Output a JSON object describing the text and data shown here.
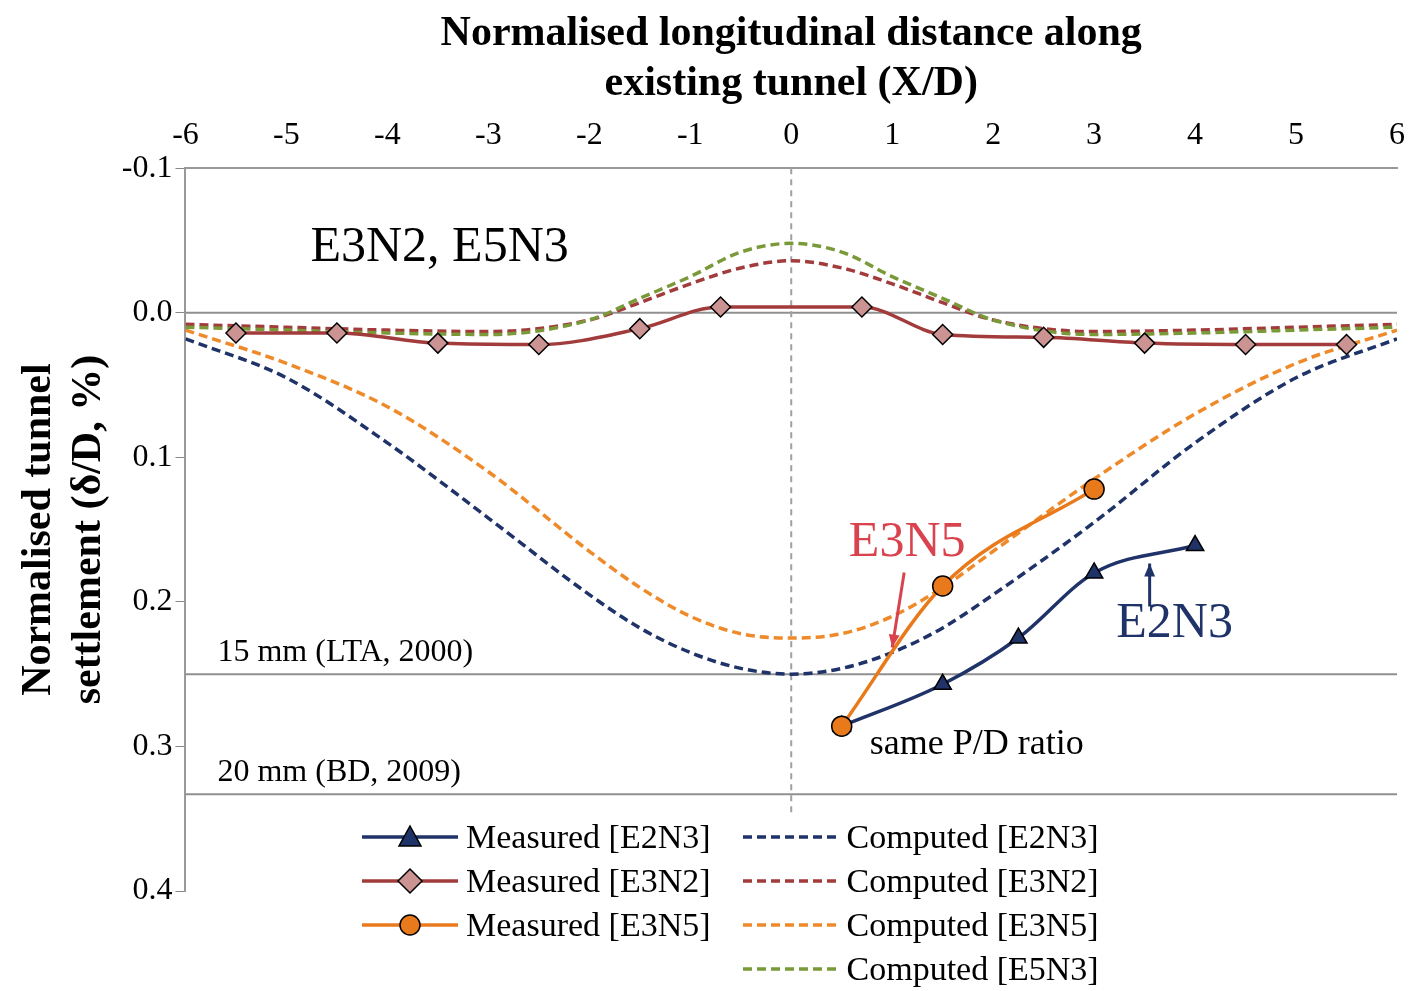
{
  "chart_data": {
    "type": "line",
    "xlabel": "Normalised longitudinal distance along existing tunnel (X/D)",
    "ylabel": "Normalised tunnel settlement (δ/D, %)",
    "xlim": [
      -6,
      6
    ],
    "xticks": [
      -6,
      -5,
      -4,
      -3,
      -2,
      -1,
      0,
      1,
      2,
      3,
      4,
      5,
      6
    ],
    "ylim": [
      0.4,
      -0.1
    ],
    "yticks": [
      -0.1,
      {
        "value": 0,
        "label": "0.0"
      },
      0.1,
      0.2,
      0.3,
      0.4
    ],
    "grid": false,
    "legend": "bottom",
    "series": [
      {
        "name": "Measured [E2N3]",
        "color": "#1f3368",
        "marker": "triangle",
        "line_style": "solid",
        "x": [
          0.5,
          1.5,
          2.25,
          3,
          4
        ],
        "values": [
          0.286,
          0.257,
          0.225,
          0.18,
          0.161
        ]
      },
      {
        "name": "Measured [E3N2]",
        "color": "#a23b3b",
        "marker": "diamond",
        "line_style": "solid",
        "x": [
          -5.5,
          -4.5,
          -3.5,
          -2.5,
          -1.5,
          -0.7,
          0.7,
          1.5,
          2.5,
          3.5,
          4.5,
          5.5
        ],
        "values": [
          0.014,
          0.014,
          0.021,
          0.022,
          0.011,
          -0.004,
          -0.004,
          0.015,
          0.017,
          0.021,
          0.022,
          0.022
        ]
      },
      {
        "name": "Measured [E3N5]",
        "color": "#e97a1c",
        "marker": "circle",
        "line_style": "solid",
        "x": [
          0.5,
          1.5,
          3
        ],
        "values": [
          0.286,
          0.189,
          0.122
        ]
      },
      {
        "name": "Computed [E2N3]",
        "color": "#1f3368",
        "marker": "none",
        "line_style": "dashed",
        "x": [
          -6,
          -5,
          -4,
          -3,
          -2,
          -1.5,
          -1,
          -0.5,
          0,
          0.5,
          1,
          1.5,
          2,
          3,
          4,
          5,
          6
        ],
        "values": [
          0.018,
          0.045,
          0.09,
          0.142,
          0.195,
          0.218,
          0.235,
          0.246,
          0.25,
          0.246,
          0.235,
          0.218,
          0.195,
          0.145,
          0.09,
          0.045,
          0.018
        ]
      },
      {
        "name": "Computed [E3N2]",
        "color": "#a23b3b",
        "marker": "none",
        "line_style": "dashed",
        "x": [
          -6,
          -5,
          -4,
          -3,
          -2,
          -1.5,
          -1,
          -0.5,
          0,
          0.5,
          1,
          1.5,
          2,
          3,
          4,
          5,
          6
        ],
        "values": [
          0.008,
          0.01,
          0.012,
          0.013,
          0.005,
          -0.007,
          -0.02,
          -0.031,
          -0.036,
          -0.031,
          -0.02,
          -0.007,
          0.005,
          0.013,
          0.012,
          0.01,
          0.008
        ]
      },
      {
        "name": "Computed [E3N5]",
        "color": "#ef8a2a",
        "marker": "none",
        "line_style": "dashed",
        "x": [
          -6,
          -5,
          -4,
          -3,
          -2,
          -1.5,
          -1,
          -0.5,
          0,
          0.5,
          1,
          1.5,
          2,
          3,
          4,
          5,
          6
        ],
        "values": [
          0.012,
          0.035,
          0.065,
          0.11,
          0.165,
          0.19,
          0.21,
          0.222,
          0.225,
          0.222,
          0.21,
          0.19,
          0.165,
          0.115,
          0.07,
          0.035,
          0.012
        ]
      },
      {
        "name": "Computed [E5N3]",
        "color": "#7a9a3a",
        "marker": "none",
        "line_style": "dashed",
        "x": [
          -6,
          -5,
          -4,
          -3,
          -2,
          -1.5,
          -1,
          -0.5,
          0,
          0.5,
          1,
          1.5,
          2,
          3,
          4,
          5,
          6
        ],
        "values": [
          0.01,
          0.012,
          0.014,
          0.015,
          0.005,
          -0.01,
          -0.025,
          -0.042,
          -0.048,
          -0.042,
          -0.025,
          -0.01,
          0.005,
          0.015,
          0.014,
          0.012,
          0.01
        ]
      }
    ],
    "ref_lines": [
      {
        "axis": "y",
        "value": 0,
        "color": "#909090",
        "line_style": "solid"
      },
      {
        "axis": "x",
        "value": 0,
        "color": "#a0a0a0",
        "line_style": "dashed"
      },
      {
        "axis": "y",
        "value": 0.25,
        "label": "15 mm (LTA, 2000)",
        "color": "#909090",
        "line_style": "solid"
      },
      {
        "axis": "y",
        "value": 0.333,
        "label": "20 mm (BD, 2009)",
        "color": "#909090",
        "line_style": "solid"
      }
    ],
    "annotations": [
      "E3N2, E5N3",
      {
        "text": "E3N5",
        "x": 1,
        "y": 0.235
      },
      {
        "text": "E2N3",
        "x": 3.55,
        "y": 0.17
      },
      {
        "text": "same P/D ratio",
        "x": 0.5,
        "y": 0.286
      }
    ]
  }
}
